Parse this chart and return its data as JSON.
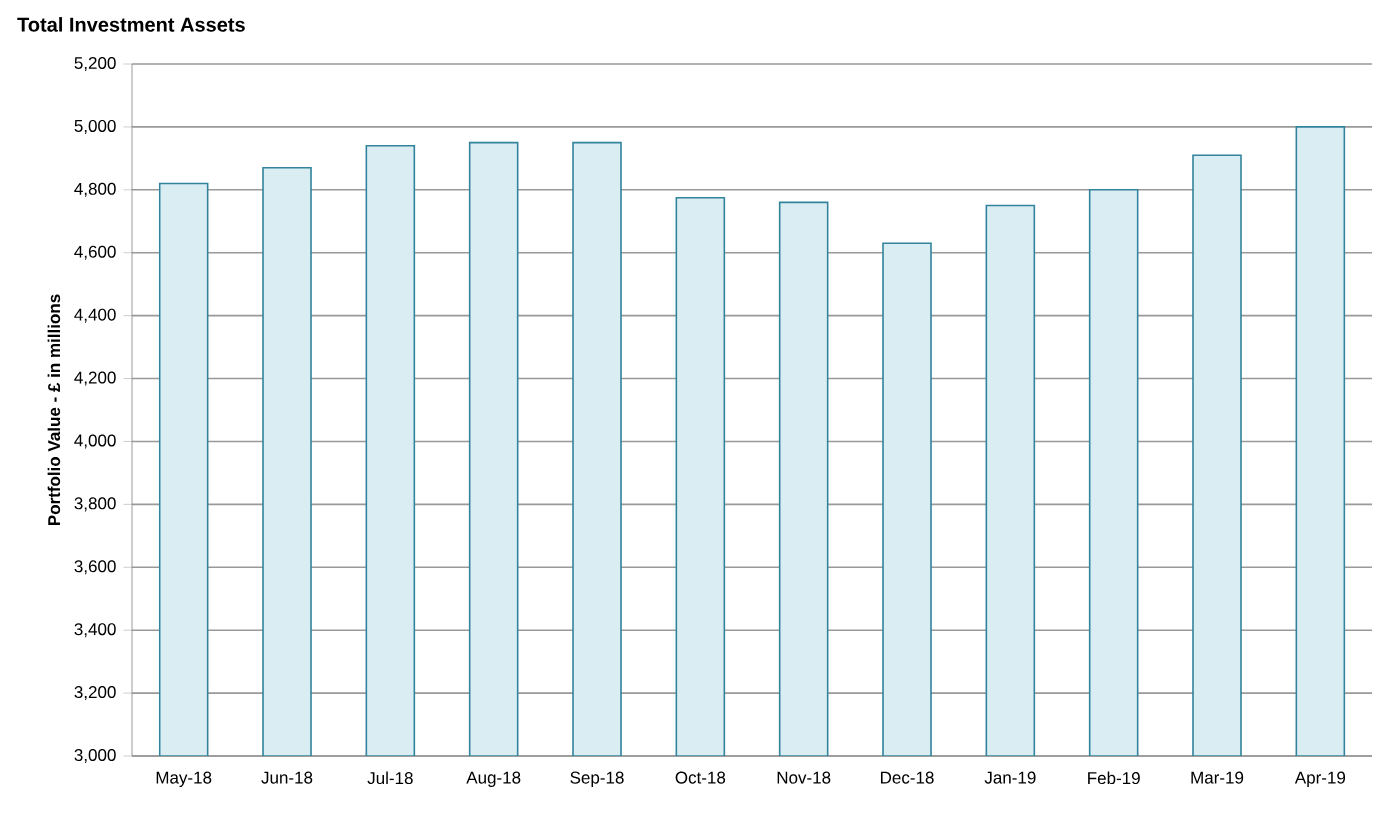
{
  "chart_data": {
    "type": "bar",
    "title": "Total Investment Assets",
    "ylabel": "Portfolio Value - £ in millions",
    "categories": [
      "May-18",
      "Jun-18",
      "Jul-18",
      "Aug-18",
      "Sep-18",
      "Oct-18",
      "Nov-18",
      "Dec-18",
      "Jan-19",
      "Feb-19",
      "Mar-19",
      "Apr-19"
    ],
    "values": [
      4820,
      4870,
      4940,
      4950,
      4950,
      4775,
      4760,
      4630,
      4750,
      4800,
      4910,
      5000
    ],
    "color": "#daedf3",
    "ylim": [
      3000,
      5200
    ],
    "yticks": [
      {
        "value": 3000,
        "label": "3,000"
      },
      {
        "value": 3200,
        "label": "3,200"
      },
      {
        "value": 3400,
        "label": "3,400"
      },
      {
        "value": 3600,
        "label": "3,600"
      },
      {
        "value": 3800,
        "label": "3,800"
      },
      {
        "value": 4000,
        "label": "4,000"
      },
      {
        "value": 4200,
        "label": "4,200"
      },
      {
        "value": 4400,
        "label": "4,400"
      },
      {
        "value": 4600,
        "label": "4,600"
      },
      {
        "value": 4800,
        "label": "4,800"
      },
      {
        "value": 5000,
        "label": "5,000"
      },
      {
        "value": 5200,
        "label": "5,200"
      }
    ],
    "grid": "y"
  }
}
